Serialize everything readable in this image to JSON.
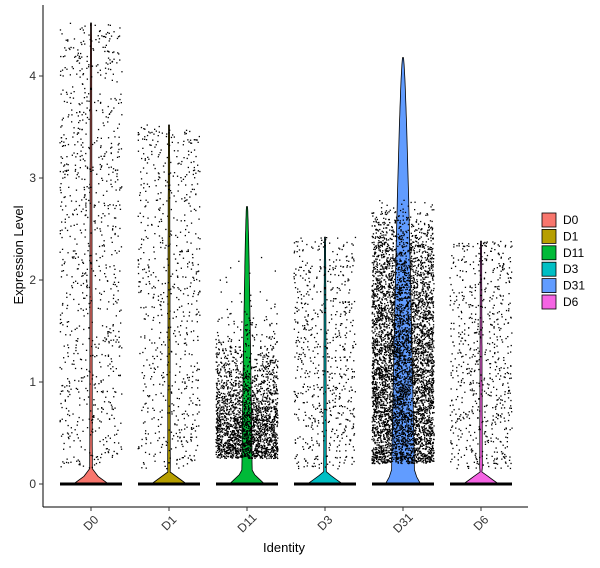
{
  "chart_data": {
    "type": "violin",
    "xlabel": "Identity",
    "ylabel": "Expression Level",
    "ylim": [
      -0.25,
      4.6
    ],
    "yticks": [
      0,
      1,
      2,
      3,
      4
    ],
    "categories": [
      "D0",
      "D1",
      "D11",
      "D3",
      "D31",
      "D6"
    ],
    "legend_position": "right",
    "series": [
      {
        "name": "D0",
        "color": "#F8766D",
        "max_value": 4.52,
        "zero_density_halfwidth": 0.45,
        "nonzero_density_halfwidth": 0.02,
        "expressing_cells_approx": 900
      },
      {
        "name": "D1",
        "color": "#B79F00",
        "max_value": 3.52,
        "zero_density_halfwidth": 0.45,
        "nonzero_density_halfwidth": 0.02,
        "expressing_cells_approx": 700
      },
      {
        "name": "D11",
        "color": "#00BA38",
        "max_value": 2.72,
        "zero_density_halfwidth": 0.45,
        "nonzero_density_halfwidth": 0.12,
        "expressing_cells_approx": 2400
      },
      {
        "name": "D3",
        "color": "#00BFC4",
        "max_value": 2.42,
        "zero_density_halfwidth": 0.45,
        "nonzero_density_halfwidth": 0.02,
        "expressing_cells_approx": 650
      },
      {
        "name": "D31",
        "color": "#619CFF",
        "max_value": 4.18,
        "zero_density_halfwidth": 0.45,
        "nonzero_density_halfwidth": 0.28,
        "expressing_cells_approx": 5500
      },
      {
        "name": "D6",
        "color": "#F564E3",
        "max_value": 2.38,
        "zero_density_halfwidth": 0.45,
        "nonzero_density_halfwidth": 0.02,
        "expressing_cells_approx": 700
      }
    ]
  }
}
